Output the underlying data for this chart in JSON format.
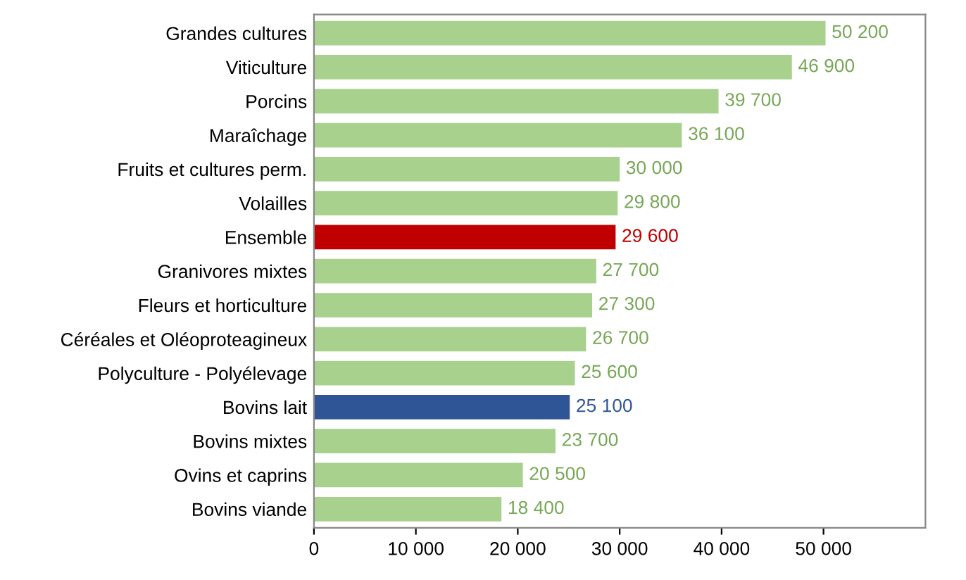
{
  "chart_data": {
    "type": "bar",
    "orientation": "horizontal",
    "categories": [
      "Grandes cultures",
      "Viticulture",
      "Porcins",
      "Maraîchage",
      "Fruits et cultures perm.",
      "Volailles",
      "Ensemble",
      "Granivores mixtes",
      "Fleurs et horticulture",
      "Céréales et Oléoproteagineux",
      "Polyculture - Polyélevage",
      "Bovins lait",
      "Bovins mixtes",
      "Ovins et caprins",
      "Bovins viande"
    ],
    "values": [
      50200,
      46900,
      39700,
      36100,
      30000,
      29800,
      29600,
      27700,
      27300,
      26700,
      25600,
      25100,
      23700,
      20500,
      18400
    ],
    "value_labels": [
      "50 200",
      "46 900",
      "39 700",
      "36 100",
      "30 000",
      "29 800",
      "29 600",
      "27 700",
      "27 300",
      "26 700",
      "25 600",
      "25 100",
      "23 700",
      "20 500",
      "18 400"
    ],
    "colors": [
      "#a9d18e",
      "#a9d18e",
      "#a9d18e",
      "#a9d18e",
      "#a9d18e",
      "#a9d18e",
      "#c00000",
      "#a9d18e",
      "#a9d18e",
      "#a9d18e",
      "#a9d18e",
      "#2f5597",
      "#a9d18e",
      "#a9d18e",
      "#a9d18e"
    ],
    "xlim": [
      0,
      60000
    ],
    "xticks": [
      0,
      {
        "value": 10000,
        "label": "10 000"
      },
      {
        "value": 20000,
        "label": "20 000"
      },
      {
        "value": 30000,
        "label": "30 000"
      },
      {
        "value": 40000,
        "label": "40 000"
      },
      {
        "value": 50000,
        "label": "50 000"
      }
    ],
    "grid": false
  }
}
